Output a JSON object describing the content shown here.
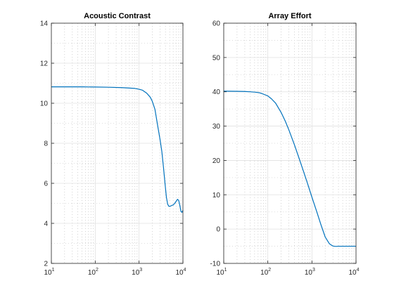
{
  "chart_data": [
    {
      "type": "line",
      "title": "Acoustic Contrast",
      "xlabel": "",
      "ylabel": "",
      "xscale": "log",
      "xlim": [
        10,
        10000
      ],
      "ylim": [
        2,
        14
      ],
      "xticks": [
        10,
        100,
        1000,
        10000
      ],
      "xtick_labels": [
        {
          "base": "10",
          "exp": "1"
        },
        {
          "base": "10",
          "exp": "2"
        },
        {
          "base": "10",
          "exp": "3"
        },
        {
          "base": "10",
          "exp": "4"
        }
      ],
      "yticks": [
        2,
        4,
        6,
        8,
        10,
        12,
        14
      ],
      "ytick_labels": [
        "2",
        "4",
        "6",
        "8",
        "10",
        "12",
        "14"
      ],
      "grid": true,
      "minor_grid": true,
      "line_color": "#0072BD",
      "series": [
        {
          "x": [
            10,
            20,
            50,
            100,
            200,
            400,
            600,
            800,
            1000,
            1200,
            1500,
            1800,
            2000,
            2300,
            2600,
            3000,
            3300,
            3600,
            3900,
            4200,
            4500,
            4800,
            5200,
            5600,
            6000,
            6500,
            7000,
            7500,
            8000,
            8500,
            9000,
            9500,
            10000
          ],
          "y": [
            10.82,
            10.82,
            10.82,
            10.81,
            10.8,
            10.78,
            10.76,
            10.74,
            10.7,
            10.65,
            10.5,
            10.3,
            10.1,
            9.7,
            9.0,
            8.2,
            7.6,
            6.8,
            6.0,
            5.3,
            4.95,
            4.85,
            4.86,
            4.9,
            4.92,
            5.0,
            5.1,
            5.2,
            5.15,
            4.9,
            4.6,
            4.55,
            4.65
          ]
        }
      ]
    },
    {
      "type": "line",
      "title": "Array Effort",
      "xlabel": "",
      "ylabel": "",
      "xscale": "log",
      "xlim": [
        10,
        10000
      ],
      "ylim": [
        -10,
        60
      ],
      "xticks": [
        10,
        100,
        1000,
        10000
      ],
      "xtick_labels": [
        {
          "base": "10",
          "exp": "1"
        },
        {
          "base": "10",
          "exp": "2"
        },
        {
          "base": "10",
          "exp": "3"
        },
        {
          "base": "10",
          "exp": "4"
        }
      ],
      "yticks": [
        -10,
        0,
        10,
        20,
        30,
        40,
        50,
        60
      ],
      "ytick_labels": [
        "-10",
        "0",
        "10",
        "20",
        "30",
        "40",
        "50",
        "60"
      ],
      "grid": true,
      "minor_grid": true,
      "line_color": "#0072BD",
      "series": [
        {
          "x": [
            10,
            20,
            30,
            40,
            50,
            60,
            70,
            80,
            100,
            120,
            150,
            200,
            250,
            300,
            400,
            500,
            600,
            800,
            1000,
            1300,
            1600,
            2000,
            2500,
            3000,
            3500,
            4000,
            5000,
            6000,
            8000,
            10000
          ],
          "y": [
            40.2,
            40.15,
            40.1,
            40.0,
            39.9,
            39.8,
            39.6,
            39.3,
            38.8,
            38.0,
            36.7,
            34.0,
            31.4,
            28.9,
            24.6,
            21.0,
            18.0,
            13.2,
            9.3,
            4.9,
            1.3,
            -2.3,
            -4.3,
            -4.95,
            -5.05,
            -5.0,
            -5.0,
            -5.0,
            -5.0,
            -5.0
          ]
        }
      ]
    }
  ]
}
